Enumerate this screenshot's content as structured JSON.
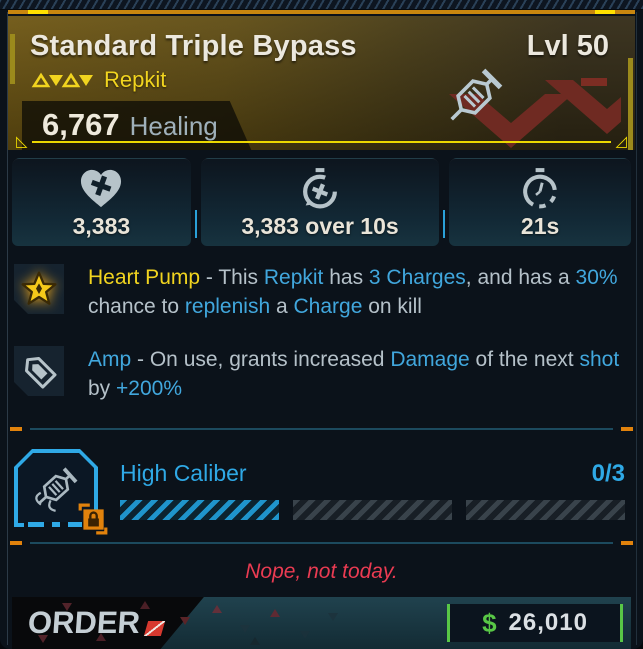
{
  "header": {
    "title": "Standard Triple Bypass",
    "level": "Lvl 50",
    "item_type": "Repkit",
    "healing_value": "6,767",
    "healing_label": "Healing",
    "tier_icon": "tier-triangles-icon",
    "item_icon": "syringe-icon"
  },
  "stats": [
    {
      "icon": "heart-cross-icon",
      "value": "3,383"
    },
    {
      "icon": "regen-timer-icon",
      "value": "3,383 over 10s"
    },
    {
      "icon": "cooldown-timer-icon",
      "value": "21s"
    }
  ],
  "perks": [
    {
      "icon": "star-icon",
      "segments": [
        {
          "t": "Heart Pump",
          "c": "yellow"
        },
        {
          "t": " - This ",
          "c": "base"
        },
        {
          "t": "Repkit",
          "c": "blue"
        },
        {
          "t": " has ",
          "c": "base"
        },
        {
          "t": "3 Charges",
          "c": "blue"
        },
        {
          "t": ", and has a ",
          "c": "base"
        },
        {
          "t": "30%",
          "c": "blue"
        },
        {
          "t": " chance to ",
          "c": "base"
        },
        {
          "t": "replenish",
          "c": "blue"
        },
        {
          "t": " a ",
          "c": "base"
        },
        {
          "t": "Charge",
          "c": "blue"
        },
        {
          "t": " on kill",
          "c": "base"
        }
      ]
    },
    {
      "icon": "bullet-icon",
      "segments": [
        {
          "t": "Amp",
          "c": "blue"
        },
        {
          "t": " - On use, grants increased ",
          "c": "base"
        },
        {
          "t": "Damage",
          "c": "blue"
        },
        {
          "t": " of the next ",
          "c": "base"
        },
        {
          "t": "shot",
          "c": "blue"
        },
        {
          "t": " by ",
          "c": "base"
        },
        {
          "t": "+200%",
          "c": "blue"
        }
      ]
    }
  ],
  "mod": {
    "name": "High Caliber",
    "progress": "0/3",
    "icon": "mod-syringe-icon",
    "lock_icon": "lock-icon",
    "slots": [
      "active",
      "empty",
      "empty"
    ]
  },
  "flavor_text": "Nope, not today.",
  "footer": {
    "brand": "ORDER",
    "currency_symbol": "$",
    "price": "26,010"
  },
  "colors": {
    "accent_blue": "#41a7dd",
    "accent_yellow": "#f1d41f",
    "accent_orange": "#e1820c",
    "header_amber": "#5f4c13",
    "flavor_red": "#ea3b52",
    "price_green": "#58c746",
    "mod_blue": "#2fa9e6"
  }
}
